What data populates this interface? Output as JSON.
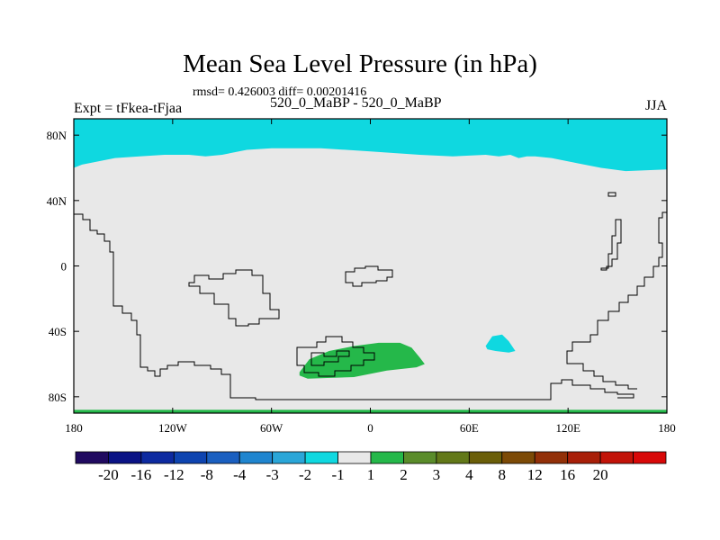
{
  "header": {
    "title": "Mean Sea Level Pressure (in hPa)",
    "stats": "rmsd= 0.426003 diff= 0.00201416",
    "left_label": "Expt = tFkea-tFjaa",
    "center_label": "520_0_MaBP - 520_0_MaBP",
    "right_label": "JJA"
  },
  "chart_data": {
    "type": "heatmap",
    "title": "Mean Sea Level Pressure (in hPa)",
    "xlim": [
      -180,
      180
    ],
    "ylim": [
      -90,
      90
    ],
    "x_ticks": [
      {
        "value": -180,
        "label": "180"
      },
      {
        "value": -120,
        "label": "120W"
      },
      {
        "value": -60,
        "label": "60W"
      },
      {
        "value": 0,
        "label": "0"
      },
      {
        "value": 60,
        "label": "60E"
      },
      {
        "value": 120,
        "label": "120E"
      },
      {
        "value": 180,
        "label": "180"
      }
    ],
    "y_ticks": [
      {
        "value": 80,
        "label": "80N"
      },
      {
        "value": 40,
        "label": "40N"
      },
      {
        "value": 0,
        "label": "0"
      },
      {
        "value": -40,
        "label": "40S"
      },
      {
        "value": -80,
        "label": "80S"
      }
    ],
    "background_color": "#e8e8e8",
    "colorbar": {
      "colors": [
        "#200a60",
        "#0a1285",
        "#0d2aa0",
        "#0e44b0",
        "#1a5fc0",
        "#1f85cf",
        "#2aa6d8",
        "#0fd8e0",
        "#e8e8e8",
        "#25b84a",
        "#5a8c2a",
        "#627818",
        "#6a5e08",
        "#7c4a06",
        "#923008",
        "#a81f08",
        "#c21308",
        "#d80808"
      ],
      "labels": [
        "-20",
        "-16",
        "-12",
        "-8",
        "-4",
        "-3",
        "-2",
        "-1",
        "1",
        "2",
        "3",
        "4",
        "8",
        "12",
        "16",
        "20"
      ]
    },
    "regions": [
      {
        "name": "north-polar-negative",
        "value_range": "-2 to -1",
        "color": "#0fd8e0",
        "polygon": [
          [
            -180,
            90
          ],
          [
            180,
            90
          ],
          [
            180,
            59
          ],
          [
            155,
            58
          ],
          [
            140,
            60
          ],
          [
            125,
            63
          ],
          [
            110,
            66
          ],
          [
            100,
            67
          ],
          [
            95,
            67
          ],
          [
            90,
            66
          ],
          [
            85,
            68
          ],
          [
            78,
            67
          ],
          [
            70,
            68
          ],
          [
            50,
            67
          ],
          [
            30,
            68
          ],
          [
            0,
            70
          ],
          [
            -30,
            72
          ],
          [
            -60,
            72
          ],
          [
            -75,
            71
          ],
          [
            -90,
            68
          ],
          [
            -100,
            67
          ],
          [
            -110,
            68
          ],
          [
            -125,
            68
          ],
          [
            -140,
            67
          ],
          [
            -155,
            66
          ],
          [
            -165,
            64
          ],
          [
            -175,
            62
          ],
          [
            -180,
            60
          ]
        ]
      },
      {
        "name": "south-pacific-positive",
        "value_range": "1 to 2",
        "color": "#25b84a",
        "polygon": [
          [
            -43,
            -65
          ],
          [
            -37,
            -57
          ],
          [
            -25,
            -52
          ],
          [
            -10,
            -49
          ],
          [
            5,
            -47
          ],
          [
            18,
            -47
          ],
          [
            25,
            -50
          ],
          [
            30,
            -56
          ],
          [
            33,
            -60
          ],
          [
            28,
            -62
          ],
          [
            10,
            -64
          ],
          [
            -10,
            -68
          ],
          [
            -38,
            -69
          ],
          [
            -43,
            -67
          ]
        ]
      },
      {
        "name": "south-indian-negative",
        "value_range": "-2 to -1",
        "color": "#0fd8e0",
        "polygon": [
          [
            70,
            -49
          ],
          [
            74,
            -43
          ],
          [
            80,
            -42
          ],
          [
            84,
            -46
          ],
          [
            88,
            -52
          ],
          [
            84,
            -53
          ],
          [
            76,
            -52
          ],
          [
            71,
            -51
          ]
        ]
      },
      {
        "name": "south-pole-band",
        "value_range": "1 to 2",
        "color": "#25b84a",
        "polygon": [
          [
            -180,
            -88
          ],
          [
            180,
            -88
          ],
          [
            180,
            -90
          ],
          [
            -180,
            -90
          ]
        ]
      }
    ]
  }
}
